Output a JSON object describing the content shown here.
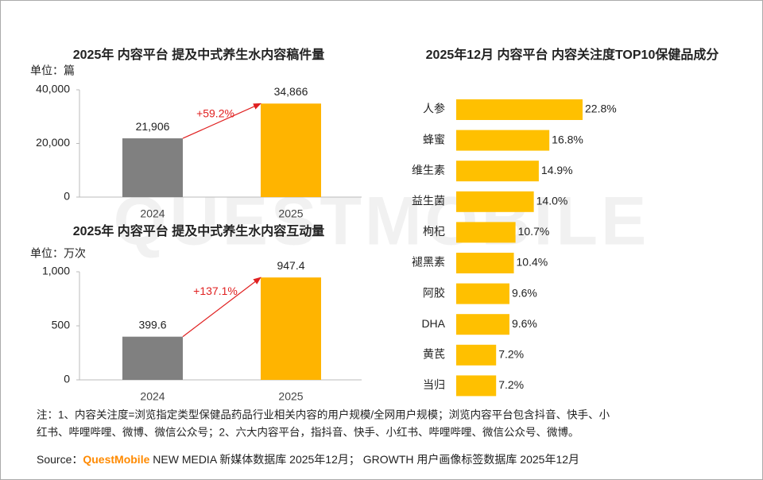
{
  "chart_data": [
    {
      "type": "bar",
      "title": "2025年 内容平台 提及中式养生水内容稿件量",
      "unit_label": "单位：篇",
      "categories": [
        "2024",
        "2025"
      ],
      "values": [
        21906,
        34866
      ],
      "value_labels": [
        "21,906",
        "34,866"
      ],
      "annotation": "+59.2%",
      "colors": [
        "#808080",
        "#ffb400"
      ],
      "ylim": [
        0,
        40000
      ],
      "yticks": [
        0,
        {
          "value": 20000,
          "label": "20,000"
        },
        {
          "value": 40000,
          "label": "40,000"
        }
      ]
    },
    {
      "type": "bar",
      "title": "2025年 内容平台 提及中式养生水内容互动量",
      "unit_label": "单位：万次",
      "categories": [
        "2024",
        "2025"
      ],
      "values": [
        399.6,
        947.4
      ],
      "annotation": "+137.1%",
      "colors": [
        "#808080",
        "#ffb400"
      ],
      "ylim": [
        0,
        1000
      ],
      "yticks": [
        0,
        500,
        {
          "value": 1000,
          "label": "1,000"
        }
      ]
    },
    {
      "type": "hbar",
      "title": "2025年12月 内容平台 内容关注度TOP10保健品成分",
      "categories": [
        "人参",
        "蜂蜜",
        "维生素",
        "益生菌",
        "枸杞",
        "褪黑素",
        "阿胶",
        "DHA",
        "黄芪",
        "当归"
      ],
      "values": [
        22.8,
        16.8,
        14.9,
        14.0,
        10.7,
        10.4,
        9.6,
        9.6,
        7.2,
        7.2
      ],
      "value_labels": [
        "22.8%",
        "16.8%",
        "14.9%",
        "14.0%",
        "10.7%",
        "10.4%",
        "9.6%",
        "9.6%",
        "7.2%",
        "7.2%"
      ],
      "color": "#ffc000"
    }
  ],
  "watermark": "QUESTMOBILE",
  "note": [
    "注：1、内容关注度=浏览指定类型保健品药品行业相关内容的用户规模/全网用户规模；浏览内容平台包含抖音、快手、小",
    "红书、哔哩哔哩、微博、微信公众号；2、六大内容平台，指抖音、快手、小红书、哔哩哔哩、微信公众号、微博。"
  ],
  "source": {
    "label": "Source：",
    "brand": "QuestMobile",
    "text": " NEW MEDIA 新媒体数据库 2025年12月； GROWTH 用户画像标签数据库 2025年12月"
  }
}
